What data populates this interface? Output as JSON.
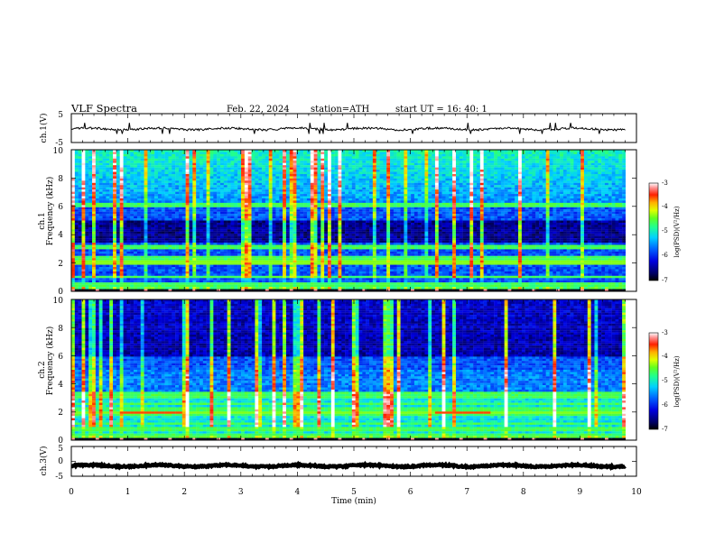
{
  "header": {
    "title": "VLF  Spectra",
    "date": "Feb. 22, 2024",
    "station": "station=ATH",
    "start": "start  UT  =   16: 40: 1"
  },
  "chart_data": [
    {
      "type": "line",
      "panel": "ch1-waveform",
      "ylabel": "ch.1(V)",
      "yticks": [
        "5",
        "-5"
      ],
      "ylim": [
        -5,
        5
      ],
      "xlim": [
        0,
        10
      ],
      "signal": {
        "mean_v": -0.3,
        "noise_v": 0.35,
        "spike_down_v": -2.0,
        "spike_up_v": 1.8,
        "end_min": 9.8
      },
      "color": "#000000"
    },
    {
      "type": "heatmap",
      "panel": "ch1-spectrogram",
      "ylabel": "ch.1",
      "ylabel2": "Frequency  (kHz)",
      "yticks": [
        "0",
        "2",
        "4",
        "6",
        "8",
        "10"
      ],
      "ylim": [
        0,
        10
      ],
      "xlim": [
        0,
        10
      ],
      "bands_khz": [
        0.35,
        0.6,
        1.0,
        2.05,
        2.35,
        3.05,
        3.2,
        6.1
      ],
      "tone_khz": 2.05,
      "dark_band_khz": [
        3.5,
        5.0
      ],
      "colorbar": {
        "ticks": [
          "-3",
          "-4",
          "-5",
          "-6",
          "-7"
        ],
        "range": [
          -7,
          -3
        ],
        "label": "log(PSD)(V²/Hz)"
      }
    },
    {
      "type": "heatmap",
      "panel": "ch2-spectrogram",
      "ylabel": "ch.2",
      "ylabel2": "Frequency  (kHz)",
      "yticks": [
        "0",
        "2",
        "4",
        "6",
        "8",
        "10"
      ],
      "ylim": [
        0,
        10
      ],
      "xlim": [
        0,
        10
      ],
      "bands_khz": [
        0.3,
        0.8,
        1.2,
        1.8,
        2.0,
        2.2,
        2.6,
        3.0,
        3.3
      ],
      "tone_khz": 2.0,
      "tone_segments_min": [
        [
          0.8,
          1.9
        ],
        [
          6.4,
          7.4
        ]
      ],
      "colorbar": {
        "ticks": [
          "-3",
          "-4",
          "-5",
          "-6",
          "-7"
        ],
        "range": [
          -7,
          -3
        ],
        "label": "log(PSD)(V²/Hz)"
      }
    },
    {
      "type": "line",
      "panel": "ch3-waveform",
      "ylabel": "ch.3(V)",
      "yticks": [
        "5",
        "0",
        "-5"
      ],
      "ylim": [
        -5,
        5
      ],
      "xlim": [
        0,
        10
      ],
      "signal": {
        "mean_v": -1.5,
        "noise_v": 0.25,
        "end_min": 9.8
      },
      "xlabel": "Time  (min)",
      "xticks": [
        "0",
        "1",
        "2",
        "3",
        "4",
        "5",
        "6",
        "7",
        "8",
        "9",
        "10"
      ],
      "color": "#000000"
    }
  ],
  "colors": {
    "axis": "#000000",
    "tone": "#ff2a1a",
    "colormap": [
      "#00004a",
      "#0000c8",
      "#0066ff",
      "#00c8ff",
      "#33ff99",
      "#ccff33",
      "#ffcc00",
      "#ff2a00",
      "#ffb0b0",
      "#ffffff"
    ]
  }
}
